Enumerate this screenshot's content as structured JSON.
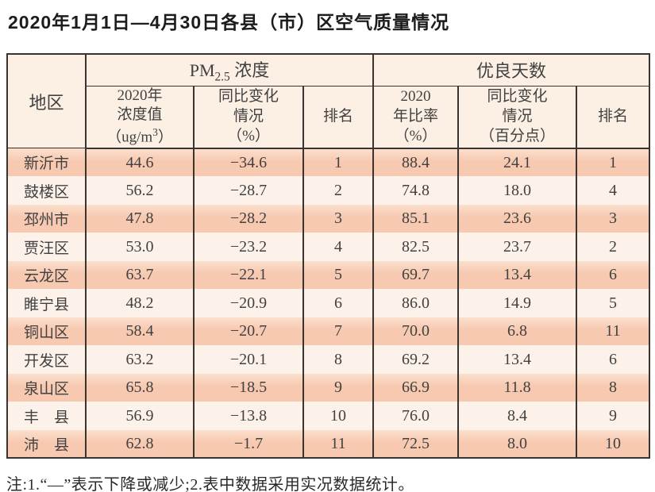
{
  "title": "2020年1月1日—4月30日各县（市）区空气质量情况",
  "colors": {
    "row_odd_top": "#fbdfcd",
    "row_odd": "#f7c9b0",
    "row_even": "#fdf2ea",
    "header_bg": "#fcefe3",
    "border": "#3a3430",
    "text": "#414141",
    "title": "#1c1c1c"
  },
  "table": {
    "header": {
      "region": "地区",
      "group_pm": {
        "prefix": "PM",
        "sub": "2.5",
        "suffix": " 浓度"
      },
      "group_good": "优良天数",
      "pm_value": {
        "l1": "2020年",
        "l2": "浓度值",
        "l3a": "（ug/m",
        "l3b": "3",
        "l3c": "）"
      },
      "pm_change": {
        "l1": "同比变化",
        "l2": "情况",
        "l3": "（%）"
      },
      "pm_rank": "排名",
      "good_ratio": {
        "l1": "2020",
        "l2": "年比率",
        "l3": "（%）"
      },
      "good_change": {
        "l1": "同比变化",
        "l2": "情况",
        "l3": "（百分点）"
      },
      "good_rank": "排名"
    },
    "row_keys": [
      "region",
      "pm_value",
      "pm_change",
      "pm_rank",
      "good_ratio",
      "good_change",
      "good_rank"
    ],
    "rows": [
      {
        "region": "新沂市",
        "pm_value": "44.6",
        "pm_change": "−34.6",
        "pm_rank": "1",
        "good_ratio": "88.4",
        "good_change": "24.1",
        "good_rank": "1"
      },
      {
        "region": "鼓楼区",
        "pm_value": "56.2",
        "pm_change": "−28.7",
        "pm_rank": "2",
        "good_ratio": "74.8",
        "good_change": "18.0",
        "good_rank": "4"
      },
      {
        "region": "邳州市",
        "pm_value": "47.8",
        "pm_change": "−28.2",
        "pm_rank": "3",
        "good_ratio": "85.1",
        "good_change": "23.6",
        "good_rank": "3"
      },
      {
        "region": "贾汪区",
        "pm_value": "53.0",
        "pm_change": "−23.2",
        "pm_rank": "4",
        "good_ratio": "82.5",
        "good_change": "23.7",
        "good_rank": "2"
      },
      {
        "region": "云龙区",
        "pm_value": "63.7",
        "pm_change": "−22.1",
        "pm_rank": "5",
        "good_ratio": "69.7",
        "good_change": "13.4",
        "good_rank": "6"
      },
      {
        "region": "睢宁县",
        "pm_value": "48.2",
        "pm_change": "−20.9",
        "pm_rank": "6",
        "good_ratio": "86.0",
        "good_change": "14.9",
        "good_rank": "5"
      },
      {
        "region": "铜山区",
        "pm_value": "58.4",
        "pm_change": "−20.7",
        "pm_rank": "7",
        "good_ratio": "70.0",
        "good_change": "6.8",
        "good_rank": "11"
      },
      {
        "region": "开发区",
        "pm_value": "63.2",
        "pm_change": "−20.1",
        "pm_rank": "8",
        "good_ratio": "69.2",
        "good_change": "13.4",
        "good_rank": "6"
      },
      {
        "region": "泉山区",
        "pm_value": "65.8",
        "pm_change": "−18.5",
        "pm_rank": "9",
        "good_ratio": "66.9",
        "good_change": "11.8",
        "good_rank": "8"
      },
      {
        "region": "丰　县",
        "pm_value": "56.9",
        "pm_change": "−13.8",
        "pm_rank": "10",
        "good_ratio": "76.0",
        "good_change": "8.4",
        "good_rank": "9"
      },
      {
        "region": "沛　县",
        "pm_value": "62.8",
        "pm_change": "−1.7",
        "pm_rank": "11",
        "good_ratio": "72.5",
        "good_change": "8.0",
        "good_rank": "10"
      }
    ]
  },
  "footnote": "注:1.“—”表示下降或减少;2.表中数据采用实况数据统计。"
}
